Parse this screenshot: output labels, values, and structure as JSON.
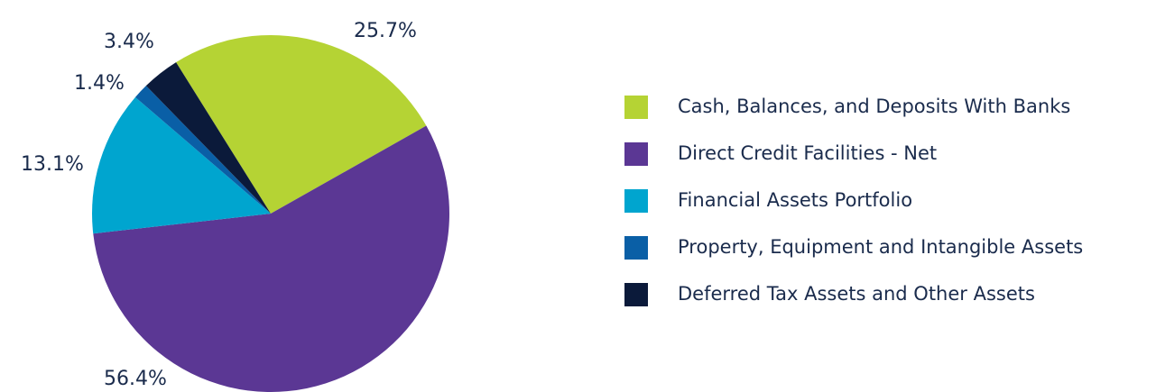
{
  "chart_data": {
    "type": "pie",
    "categories": [
      "Cash, Balances, and Deposits With Banks",
      "Direct Credit Facilities - Net",
      "Financial Assets Portfolio",
      "Property, Equipment and Intangible Assets",
      "Deferred Tax Assets and Other Assets"
    ],
    "values": [
      25.7,
      56.4,
      13.1,
      1.4,
      3.4
    ],
    "value_labels": [
      "25.7%",
      "56.4%",
      "13.1%",
      "1.4%",
      "3.4%"
    ],
    "colors": [
      "#b5d334",
      "#5b3794",
      "#00a5cf",
      "#0a5fa6",
      "#0b1a3a"
    ],
    "legend": "right"
  }
}
